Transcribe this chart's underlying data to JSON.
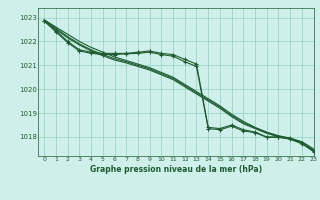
{
  "title": "Graphe pression niveau de la mer (hPa)",
  "bg_color": "#cff0ea",
  "grid_color": "#8ecfc4",
  "line_color": "#1e5c30",
  "xlim": [
    -0.5,
    23
  ],
  "ylim": [
    1017.2,
    1023.4
  ],
  "yticks": [
    1018,
    1019,
    1020,
    1021,
    1022,
    1023
  ],
  "xticks": [
    0,
    1,
    2,
    3,
    4,
    5,
    6,
    7,
    8,
    9,
    10,
    11,
    12,
    13,
    14,
    15,
    16,
    17,
    18,
    19,
    20,
    21,
    22,
    23
  ],
  "series_smooth": [
    [
      1022.9,
      1022.6,
      1022.3,
      1022.0,
      1021.75,
      1021.55,
      1021.35,
      1021.2,
      1021.05,
      1020.9,
      1020.7,
      1020.5,
      1020.2,
      1019.9,
      1019.6,
      1019.3,
      1018.95,
      1018.65,
      1018.4,
      1018.2,
      1018.05,
      1017.95,
      1017.8,
      1017.5
    ],
    [
      1022.9,
      1022.55,
      1022.2,
      1021.9,
      1021.65,
      1021.45,
      1021.28,
      1021.15,
      1021.0,
      1020.85,
      1020.65,
      1020.45,
      1020.15,
      1019.85,
      1019.55,
      1019.25,
      1018.9,
      1018.6,
      1018.38,
      1018.18,
      1018.03,
      1017.93,
      1017.75,
      1017.45
    ],
    [
      1022.9,
      1022.5,
      1022.15,
      1021.85,
      1021.6,
      1021.4,
      1021.22,
      1021.1,
      1020.95,
      1020.8,
      1020.6,
      1020.4,
      1020.1,
      1019.8,
      1019.5,
      1019.2,
      1018.85,
      1018.55,
      1018.35,
      1018.15,
      1018.0,
      1017.9,
      1017.72,
      1017.42
    ]
  ],
  "series_marker": [
    [
      1022.85,
      1022.45,
      1022.0,
      1021.65,
      1021.55,
      1021.5,
      1021.5,
      1021.5,
      1021.55,
      1021.6,
      1021.5,
      1021.45,
      1021.25,
      1021.05,
      1018.4,
      1018.35,
      1018.5,
      1018.3,
      1018.2,
      1018.0,
      1018.0,
      1017.95,
      1017.75,
      1017.4
    ],
    [
      1022.85,
      1022.4,
      1021.95,
      1021.6,
      1021.5,
      1021.45,
      1021.45,
      1021.48,
      1021.5,
      1021.55,
      1021.45,
      1021.38,
      1021.15,
      1020.95,
      1018.35,
      1018.3,
      1018.45,
      1018.25,
      1018.18,
      1017.98,
      1017.98,
      1017.92,
      1017.72,
      1017.38
    ]
  ]
}
